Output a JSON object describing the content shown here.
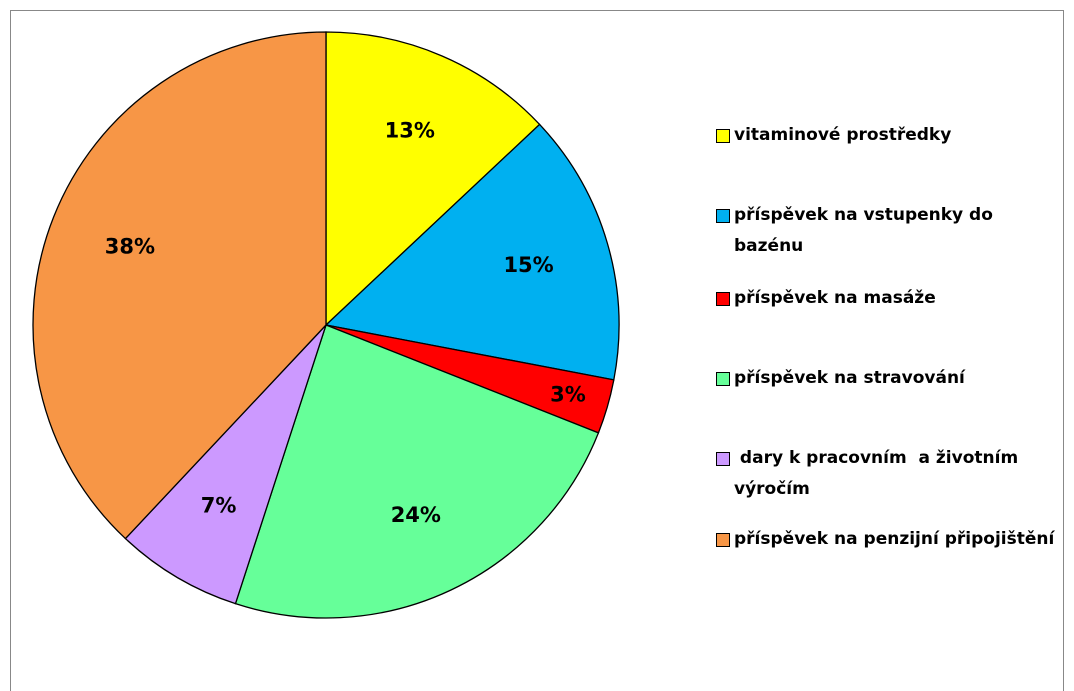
{
  "chart_data": {
    "type": "pie",
    "categories": [
      "vitaminové prostředky",
      "příspěvek na vstupenky do bazénu",
      "příspěvek na masáže",
      "příspěvek na stravování",
      " dary k pracovním  a životním výročím",
      "příspěvek na penzijní připojištění"
    ],
    "values": [
      13,
      15,
      3,
      24,
      7,
      38
    ],
    "value_labels": [
      "13%",
      "15%",
      "3%",
      "24%",
      "7%",
      "38%"
    ],
    "colors": [
      "#ffff00",
      "#00b0f0",
      "#ff0000",
      "#66ff99",
      "#cc99ff",
      "#f79646"
    ],
    "legend": "right"
  }
}
